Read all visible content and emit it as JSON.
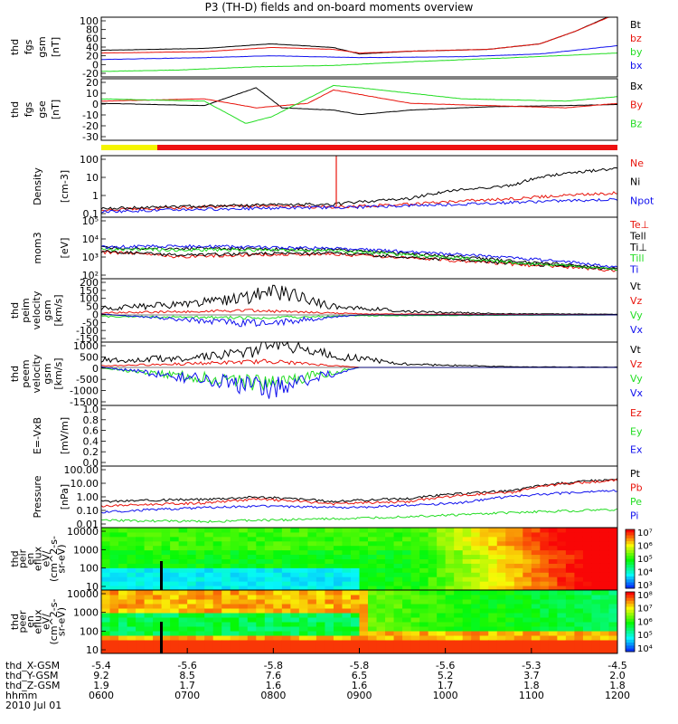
{
  "title": "P3 (TH-D) fields and on-board moments overview",
  "colors": {
    "black": "#000000",
    "red": "#e8140c",
    "green": "#22dd22",
    "blue": "#1010ee",
    "bar_yellow": "#f5f500",
    "bar_red": "#ee1111"
  },
  "chart_data": [
    {
      "type": "line",
      "id": "fgs",
      "ylabel": [
        "thd",
        "fgs",
        "gsm",
        "[nT]"
      ],
      "ylim": [
        -30,
        100
      ],
      "yticks": [
        "100",
        "80",
        "60",
        "40",
        "20",
        "0",
        "-20"
      ],
      "series": [
        {
          "name": "Bt",
          "color": "black",
          "values": [
            [
              0,
              28
            ],
            [
              0.2,
              32
            ],
            [
              0.33,
              42
            ],
            [
              0.45,
              34
            ],
            [
              0.5,
              20
            ],
            [
              0.6,
              26
            ],
            [
              0.75,
              30
            ],
            [
              0.85,
              42
            ],
            [
              0.92,
              70
            ],
            [
              1,
              110
            ]
          ]
        },
        {
          "name": "bz",
          "color": "red",
          "values": [
            [
              0,
              22
            ],
            [
              0.2,
              25
            ],
            [
              0.33,
              34
            ],
            [
              0.45,
              30
            ],
            [
              0.5,
              22
            ],
            [
              0.6,
              26
            ],
            [
              0.75,
              30
            ],
            [
              0.85,
              42
            ],
            [
              0.92,
              70
            ],
            [
              1,
              108
            ]
          ]
        },
        {
          "name": "by",
          "color": "green",
          "values": [
            [
              0,
              -18
            ],
            [
              0.15,
              -15
            ],
            [
              0.3,
              -8
            ],
            [
              0.45,
              -5
            ],
            [
              0.6,
              3
            ],
            [
              0.8,
              12
            ],
            [
              1,
              22
            ]
          ]
        },
        {
          "name": "bx",
          "color": "blue",
          "values": [
            [
              0,
              8
            ],
            [
              0.2,
              12
            ],
            [
              0.33,
              16
            ],
            [
              0.5,
              12
            ],
            [
              0.7,
              14
            ],
            [
              0.85,
              20
            ],
            [
              1,
              38
            ]
          ]
        }
      ]
    },
    {
      "type": "line",
      "id": "fgs_gse",
      "ylabel": [
        "thd",
        "fgs",
        "gse",
        "[nT]"
      ],
      "ylim": [
        -35,
        20
      ],
      "yticks": [
        "20",
        "10",
        "0",
        "-10",
        "-20",
        "-30"
      ],
      "series": [
        {
          "name": "Bx",
          "color": "black",
          "values": [
            [
              0,
              -2
            ],
            [
              0.2,
              -4
            ],
            [
              0.3,
              12
            ],
            [
              0.35,
              -6
            ],
            [
              0.45,
              -8
            ],
            [
              0.5,
              -12
            ],
            [
              0.6,
              -8
            ],
            [
              0.75,
              -5
            ],
            [
              0.9,
              -4
            ],
            [
              1,
              -3
            ]
          ]
        },
        {
          "name": "By",
          "color": "red",
          "values": [
            [
              0,
              0
            ],
            [
              0.2,
              2
            ],
            [
              0.3,
              -6
            ],
            [
              0.4,
              -2
            ],
            [
              0.45,
              10
            ],
            [
              0.5,
              6
            ],
            [
              0.6,
              -2
            ],
            [
              0.75,
              -4
            ],
            [
              0.9,
              -6
            ],
            [
              1,
              -2
            ]
          ]
        },
        {
          "name": "Bz",
          "color": "green",
          "values": [
            [
              0,
              2
            ],
            [
              0.2,
              0
            ],
            [
              0.28,
              -20
            ],
            [
              0.33,
              -14
            ],
            [
              0.45,
              14
            ],
            [
              0.5,
              12
            ],
            [
              0.7,
              2
            ],
            [
              0.9,
              0
            ],
            [
              1,
              4
            ]
          ]
        }
      ]
    },
    {
      "type": "line",
      "id": "density",
      "ylabel": [
        "Density",
        "[cm-3]"
      ],
      "log": true,
      "ylim": [
        0.1,
        200
      ],
      "yticks": [
        "100",
        "10",
        "1",
        "0.1"
      ],
      "series": [
        {
          "name": "Ne",
          "color": "red",
          "values": [
            [
              0,
              0.25
            ],
            [
              0.3,
              0.4
            ],
            [
              0.45,
              0.35
            ],
            [
              0.6,
              0.5
            ],
            [
              0.8,
              1
            ],
            [
              1,
              2
            ]
          ]
        },
        {
          "name": "Ni",
          "color": "black",
          "values": [
            [
              0,
              0.3
            ],
            [
              0.3,
              0.45
            ],
            [
              0.45,
              0.5
            ],
            [
              0.6,
              1
            ],
            [
              0.8,
              5
            ],
            [
              1,
              40
            ]
          ]
        },
        {
          "name": "Npot",
          "color": "blue",
          "values": [
            [
              0,
              0.2
            ],
            [
              0.3,
              0.3
            ],
            [
              0.5,
              0.35
            ],
            [
              0.7,
              0.5
            ],
            [
              1,
              0.9
            ]
          ]
        }
      ]
    },
    {
      "type": "line",
      "id": "temp",
      "ylabel": [
        "mom3",
        "[eV]"
      ],
      "log": true,
      "ylim": [
        100,
        100000
      ],
      "yticks": [
        "10⁵",
        "10⁴",
        "10³",
        "10²"
      ],
      "series": [
        {
          "name": "Te⊥",
          "color": "red",
          "values": [
            [
              0,
              2000
            ],
            [
              0.15,
              1200
            ],
            [
              0.3,
              1500
            ],
            [
              0.45,
              1600
            ],
            [
              0.6,
              1000
            ],
            [
              0.8,
              500
            ],
            [
              1,
              250
            ]
          ]
        },
        {
          "name": "Tell",
          "color": "black",
          "values": [
            [
              0,
              2200
            ],
            [
              0.15,
              1400
            ],
            [
              0.3,
              1700
            ],
            [
              0.45,
              1800
            ],
            [
              0.6,
              1100
            ],
            [
              0.8,
              550
            ],
            [
              1,
              300
            ]
          ]
        },
        {
          "name": "Ti⊥",
          "color": "black",
          "values": [
            [
              0,
              3200
            ],
            [
              0.15,
              3000
            ],
            [
              0.3,
              2800
            ],
            [
              0.45,
              2600
            ],
            [
              0.6,
              1600
            ],
            [
              0.8,
              700
            ],
            [
              1,
              300
            ]
          ]
        },
        {
          "name": "Till",
          "color": "green",
          "values": [
            [
              0,
              2800
            ],
            [
              0.15,
              2600
            ],
            [
              0.3,
              2500
            ],
            [
              0.45,
              2400
            ],
            [
              0.6,
              1400
            ],
            [
              0.8,
              600
            ],
            [
              1,
              280
            ]
          ]
        },
        {
          "name": "Ti",
          "color": "blue",
          "values": [
            [
              0,
              3500
            ],
            [
              0.15,
              4000
            ],
            [
              0.3,
              3500
            ],
            [
              0.45,
              3000
            ],
            [
              0.6,
              2000
            ],
            [
              0.8,
              1000
            ],
            [
              1,
              350
            ]
          ]
        }
      ]
    },
    {
      "type": "line",
      "id": "peim",
      "ylabel": [
        "thd",
        "peim",
        "velocity",
        "gsm",
        "[km/s]"
      ],
      "ylim": [
        -150,
        200
      ],
      "yticks": [
        "200",
        "150",
        "100",
        "50",
        "0",
        "-50",
        "-100",
        "-150"
      ],
      "series": [
        {
          "name": "Vt",
          "color": "black",
          "values": [
            [
              0,
              30
            ],
            [
              0.15,
              50
            ],
            [
              0.28,
              80
            ],
            [
              0.33,
              120
            ],
            [
              0.45,
              40
            ],
            [
              0.6,
              15
            ],
            [
              0.8,
              5
            ],
            [
              1,
              3
            ]
          ]
        },
        {
          "name": "Vz",
          "color": "red",
          "values": [
            [
              0,
              10
            ],
            [
              0.3,
              20
            ],
            [
              0.5,
              5
            ],
            [
              1,
              0
            ]
          ]
        },
        {
          "name": "Vy",
          "color": "green",
          "values": [
            [
              0,
              -10
            ],
            [
              0.3,
              -20
            ],
            [
              0.5,
              -5
            ],
            [
              1,
              0
            ]
          ]
        },
        {
          "name": "Vx",
          "color": "blue",
          "values": [
            [
              0,
              5
            ],
            [
              0.3,
              -60
            ],
            [
              0.5,
              0
            ],
            [
              1,
              0
            ]
          ]
        }
      ]
    },
    {
      "type": "line",
      "id": "peem",
      "ylabel": [
        "thd",
        "peem",
        "velocity",
        "gsm",
        "[km/s]"
      ],
      "ylim": [
        -1500,
        1000
      ],
      "yticks": [
        "1000",
        "500",
        "0",
        "-500",
        "-1000",
        "-1500"
      ],
      "series": [
        {
          "name": "Vt",
          "color": "black",
          "values": [
            [
              0,
              250
            ],
            [
              0.15,
              300
            ],
            [
              0.3,
              500
            ],
            [
              0.33,
              900
            ],
            [
              0.45,
              400
            ],
            [
              0.6,
              100
            ],
            [
              0.8,
              20
            ],
            [
              1,
              10
            ]
          ]
        },
        {
          "name": "Vz",
          "color": "red",
          "values": [
            [
              0,
              50
            ],
            [
              0.33,
              200
            ],
            [
              0.5,
              0
            ],
            [
              1,
              0
            ]
          ]
        },
        {
          "name": "Vy",
          "color": "green",
          "values": [
            [
              0,
              -30
            ],
            [
              0.33,
              -800
            ],
            [
              0.5,
              0
            ],
            [
              1,
              0
            ]
          ]
        },
        {
          "name": "Vx",
          "color": "blue",
          "values": [
            [
              0,
              20
            ],
            [
              0.33,
              -1000
            ],
            [
              0.5,
              0
            ],
            [
              1,
              0
            ]
          ]
        }
      ]
    },
    {
      "type": "line",
      "id": "efield",
      "ylabel": [
        "E=-VxB",
        "[mV/m]"
      ],
      "ylim": [
        0,
        1
      ],
      "yticks": [
        "1.0",
        "0.8",
        "0.6",
        "0.4",
        "0.2",
        "0.0"
      ],
      "series": [
        {
          "name": "Ez",
          "color": "red",
          "values": []
        },
        {
          "name": "Ey",
          "color": "green",
          "values": []
        },
        {
          "name": "Ex",
          "color": "blue",
          "values": []
        }
      ]
    },
    {
      "type": "line",
      "id": "pressure",
      "ylabel": [
        "Pressure",
        "[nPa]"
      ],
      "log": true,
      "ylim": [
        0.01,
        100
      ],
      "yticks": [
        "100.00",
        "10.00",
        "1.00",
        "0.10",
        "0.01"
      ],
      "series": [
        {
          "name": "Pt",
          "color": "black",
          "values": [
            [
              0,
              0.5
            ],
            [
              0.2,
              0.7
            ],
            [
              0.3,
              1
            ],
            [
              0.45,
              0.5
            ],
            [
              0.6,
              0.8
            ],
            [
              0.8,
              2.5
            ],
            [
              1,
              14
            ]
          ]
        },
        {
          "name": "Pb",
          "color": "red",
          "values": [
            [
              0,
              0.25
            ],
            [
              0.2,
              0.4
            ],
            [
              0.3,
              0.7
            ],
            [
              0.45,
              0.35
            ],
            [
              0.6,
              0.5
            ],
            [
              0.8,
              2
            ],
            [
              1,
              12
            ]
          ]
        },
        {
          "name": "Pe",
          "color": "green",
          "values": [
            [
              0,
              0.03
            ],
            [
              0.2,
              0.025
            ],
            [
              0.3,
              0.03
            ],
            [
              0.5,
              0.04
            ],
            [
              0.7,
              0.07
            ],
            [
              1,
              0.15
            ]
          ]
        },
        {
          "name": "Pi",
          "color": "blue",
          "values": [
            [
              0,
              0.1
            ],
            [
              0.2,
              0.2
            ],
            [
              0.3,
              0.25
            ],
            [
              0.5,
              0.2
            ],
            [
              0.7,
              0.4
            ],
            [
              1,
              2.5
            ]
          ]
        }
      ]
    },
    {
      "type": "heatmap",
      "id": "peir",
      "ylabel": [
        "thd",
        "peir",
        "en",
        "eflux",
        "eV/",
        "(cm^2-s-",
        "sr-eV)"
      ],
      "ylim": [
        10,
        15000
      ],
      "yticks": [
        "10000",
        "1000",
        "100",
        "10"
      ],
      "colorbar_ticks": [
        "10⁷",
        "10⁶",
        "10⁵",
        "10⁴",
        "10³"
      ]
    },
    {
      "type": "heatmap",
      "id": "peer",
      "ylabel": [
        "thd",
        "peer",
        "en",
        "eflux",
        "eV/",
        "(cm^2-s-",
        "sr-eV)"
      ],
      "ylim": [
        10,
        15000
      ],
      "yticks": [
        "10000",
        "1000",
        "100",
        "10"
      ],
      "colorbar_ticks": [
        "10⁸",
        "10⁷",
        "10⁶",
        "10⁵",
        "10⁴"
      ]
    }
  ],
  "xaxis": {
    "rows": [
      {
        "label": "thd_X-GSM",
        "values": [
          "-5.4",
          "-5.6",
          "-5.8",
          "-5.8",
          "-5.6",
          "-5.3",
          "-4.5"
        ]
      },
      {
        "label": "thd_Y-GSM",
        "values": [
          "9.2",
          "8.5",
          "7.6",
          "6.5",
          "5.2",
          "3.7",
          "2.0"
        ]
      },
      {
        "label": "thd_Z-GSM",
        "values": [
          "1.9",
          "1.7",
          "1.6",
          "1.6",
          "1.7",
          "1.8",
          "1.8"
        ]
      },
      {
        "label": "hhmm",
        "values": [
          "0600",
          "0700",
          "0800",
          "0900",
          "1000",
          "1100",
          "1200"
        ]
      }
    ],
    "date": "2010 Jul 01"
  }
}
